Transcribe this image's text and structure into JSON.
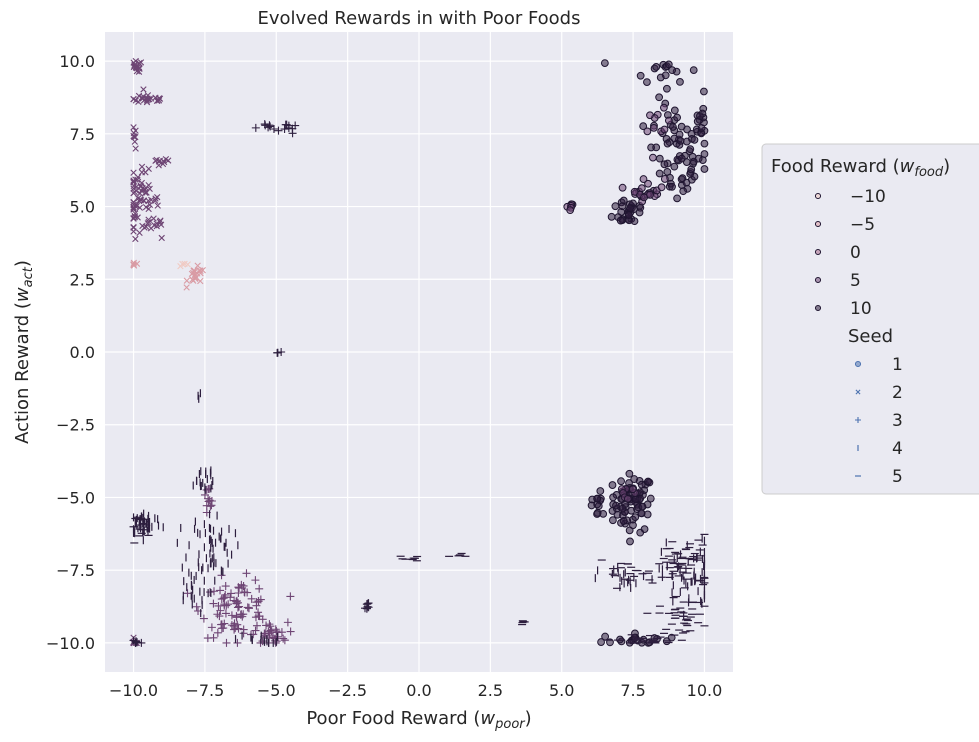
{
  "chart_data": {
    "type": "scatter",
    "title": "Evolved Rewards in with Poor Foods",
    "xlabel": "Poor Food Reward (",
    "xlabel_sym": "w",
    "xlabel_sub": "poor",
    "ylabel": "Action Reward (",
    "ylabel_sym": "w",
    "ylabel_sub": "act",
    "xlim": [
      -11,
      11
    ],
    "ylim": [
      -11,
      11
    ],
    "xticks": [
      -10,
      -7.5,
      -5,
      -2.5,
      0,
      2.5,
      5,
      7.5,
      10
    ],
    "xtick_labels": [
      "−10.0",
      "−7.5",
      "−5.0",
      "−2.5",
      "0.0",
      "2.5",
      "5.0",
      "7.5",
      "10.0"
    ],
    "yticks": [
      -10,
      -7.5,
      -5,
      -2.5,
      0,
      2.5,
      5,
      7.5,
      10
    ],
    "ytick_labels": [
      "−10.0",
      "−7.5",
      "−5.0",
      "−2.5",
      "0.0",
      "2.5",
      "5.0",
      "7.5",
      "10.0"
    ],
    "grid": true,
    "legend_position": "right",
    "legend": {
      "hue_title": "Food Reward (",
      "hue_sym": "w",
      "hue_sub": "food",
      "hue_entries": [
        {
          "label": "−10",
          "value": -10,
          "color": "#f0cac3"
        },
        {
          "label": "−5",
          "value": -5,
          "color": "#d99ba4"
        },
        {
          "label": "0",
          "value": 0,
          "color": "#a86a8c"
        },
        {
          "label": "5",
          "value": 5,
          "color": "#6e4574"
        },
        {
          "label": "10",
          "value": 10,
          "color": "#2d1e3e"
        }
      ],
      "style_title": "Seed",
      "style_entries": [
        {
          "label": "1",
          "marker": "circle"
        },
        {
          "label": "2",
          "marker": "x"
        },
        {
          "label": "3",
          "marker": "plus"
        },
        {
          "label": "4",
          "marker": "vline"
        },
        {
          "label": "5",
          "marker": "hline"
        }
      ],
      "legend_marker_color": "#4c72b0"
    },
    "clusters": [
      {
        "seed": 1,
        "food": 10,
        "x": 7.5,
        "y": -5.2,
        "sx": 0.35,
        "sy": 0.5,
        "n": 70
      },
      {
        "seed": 1,
        "food": 10,
        "x": 9.0,
        "y": 6.8,
        "sx": 0.5,
        "sy": 0.9,
        "n": 70
      },
      {
        "seed": 1,
        "food": 10,
        "x": 7.4,
        "y": 4.9,
        "sx": 0.3,
        "sy": 0.3,
        "n": 30
      },
      {
        "seed": 1,
        "food": 10,
        "x": 8.6,
        "y": 9.7,
        "sx": 0.6,
        "sy": 0.2,
        "n": 15
      },
      {
        "seed": 1,
        "food": 10,
        "x": 9.9,
        "y": 7.8,
        "sx": 0.1,
        "sy": 0.5,
        "n": 15
      },
      {
        "seed": 1,
        "food": 10,
        "x": 7.6,
        "y": -9.9,
        "sx": 0.6,
        "sy": 0.1,
        "n": 20
      },
      {
        "seed": 1,
        "food": 10,
        "x": 6.3,
        "y": -5.3,
        "sx": 0.3,
        "sy": 0.3,
        "n": 15
      },
      {
        "seed": 1,
        "food": 5,
        "x": 8.0,
        "y": 5.6,
        "sx": 0.3,
        "sy": 0.2,
        "n": 20
      },
      {
        "seed": 1,
        "food": 5,
        "x": 8.4,
        "y": 7.7,
        "sx": 0.2,
        "sy": 0.3,
        "n": 10
      },
      {
        "seed": 1,
        "food": 5,
        "x": 5.3,
        "y": 5.0,
        "sx": 0.1,
        "sy": 0.1,
        "n": 6
      },
      {
        "seed": 1,
        "food": 5,
        "x": 7.3,
        "y": -4.8,
        "sx": 0.2,
        "sy": 0.2,
        "n": 8
      },
      {
        "seed": 2,
        "food": 5,
        "x": -9.8,
        "y": 5.2,
        "sx": 0.35,
        "sy": 0.5,
        "n": 70
      },
      {
        "seed": 2,
        "food": 5,
        "x": -9.5,
        "y": 8.7,
        "sx": 0.35,
        "sy": 0.1,
        "n": 25
      },
      {
        "seed": 2,
        "food": 5,
        "x": -9.9,
        "y": 9.8,
        "sx": 0.1,
        "sy": 0.1,
        "n": 15
      },
      {
        "seed": 2,
        "food": 5,
        "x": -9.1,
        "y": 6.5,
        "sx": 0.2,
        "sy": 0.1,
        "n": 10
      },
      {
        "seed": 2,
        "food": 5,
        "x": -9.2,
        "y": 4.4,
        "sx": 0.2,
        "sy": 0.1,
        "n": 10
      },
      {
        "seed": 2,
        "food": 5,
        "x": -10.0,
        "y": 7.3,
        "sx": 0.05,
        "sy": 0.2,
        "n": 8
      },
      {
        "seed": 2,
        "food": 5,
        "x": -10.0,
        "y": -10.0,
        "sx": 0.1,
        "sy": 0.1,
        "n": 10
      },
      {
        "seed": 2,
        "food": -5,
        "x": -7.8,
        "y": 2.6,
        "sx": 0.15,
        "sy": 0.15,
        "n": 20
      },
      {
        "seed": 2,
        "food": -5,
        "x": -10.0,
        "y": 3.0,
        "sx": 0.05,
        "sy": 0.05,
        "n": 6
      },
      {
        "seed": 2,
        "food": -10,
        "x": -8.2,
        "y": 3.0,
        "sx": 0.1,
        "sy": 0.05,
        "n": 4
      },
      {
        "seed": 3,
        "food": 5,
        "x": -6.4,
        "y": -8.8,
        "sx": 0.6,
        "sy": 0.5,
        "n": 90
      },
      {
        "seed": 3,
        "food": 5,
        "x": -5.2,
        "y": -9.7,
        "sx": 0.3,
        "sy": 0.2,
        "n": 30
      },
      {
        "seed": 3,
        "food": 5,
        "x": -7.4,
        "y": -5.2,
        "sx": 0.1,
        "sy": 0.3,
        "n": 12
      },
      {
        "seed": 3,
        "food": 10,
        "x": -5.3,
        "y": 7.7,
        "sx": 0.2,
        "sy": 0.1,
        "n": 8
      },
      {
        "seed": 3,
        "food": 10,
        "x": -4.5,
        "y": 7.7,
        "sx": 0.1,
        "sy": 0.1,
        "n": 8
      },
      {
        "seed": 3,
        "food": 10,
        "x": -1.8,
        "y": -8.8,
        "sx": 0.1,
        "sy": 0.15,
        "n": 8
      },
      {
        "seed": 3,
        "food": 10,
        "x": -9.9,
        "y": -10.0,
        "sx": 0.1,
        "sy": 0.1,
        "n": 8
      },
      {
        "seed": 3,
        "food": 10,
        "x": -5.0,
        "y": 0.0,
        "sx": 0.1,
        "sy": 0.05,
        "n": 3
      },
      {
        "seed": 4,
        "food": 10,
        "x": -9.6,
        "y": -5.9,
        "sx": 0.3,
        "sy": 0.2,
        "n": 50
      },
      {
        "seed": 4,
        "food": 10,
        "x": -7.3,
        "y": -6.7,
        "sx": 0.4,
        "sy": 0.6,
        "n": 60
      },
      {
        "seed": 4,
        "food": 10,
        "x": -7.6,
        "y": -4.4,
        "sx": 0.3,
        "sy": 0.3,
        "n": 20
      },
      {
        "seed": 4,
        "food": 10,
        "x": -8.0,
        "y": -8.4,
        "sx": 0.3,
        "sy": 0.3,
        "n": 20
      },
      {
        "seed": 4,
        "food": 10,
        "x": -5.7,
        "y": -9.9,
        "sx": 0.4,
        "sy": 0.1,
        "n": 15
      },
      {
        "seed": 4,
        "food": 10,
        "x": 9.5,
        "y": -7.7,
        "sx": 0.5,
        "sy": 0.6,
        "n": 70
      },
      {
        "seed": 4,
        "food": 10,
        "x": 7.3,
        "y": -7.8,
        "sx": 0.5,
        "sy": 0.2,
        "n": 20
      },
      {
        "seed": 4,
        "food": 10,
        "x": -7.7,
        "y": -1.6,
        "sx": 0.05,
        "sy": 0.1,
        "n": 3
      },
      {
        "seed": 5,
        "food": 10,
        "x": 9.3,
        "y": -7.3,
        "sx": 0.5,
        "sy": 0.5,
        "n": 60
      },
      {
        "seed": 5,
        "food": 10,
        "x": 9.2,
        "y": -9.1,
        "sx": 0.4,
        "sy": 0.3,
        "n": 40
      },
      {
        "seed": 5,
        "food": 10,
        "x": 8.0,
        "y": -9.9,
        "sx": 0.8,
        "sy": 0.1,
        "n": 25
      },
      {
        "seed": 5,
        "food": 10,
        "x": 7.2,
        "y": -7.6,
        "sx": 0.5,
        "sy": 0.2,
        "n": 20
      },
      {
        "seed": 5,
        "food": 10,
        "x": -0.3,
        "y": -7.1,
        "sx": 0.2,
        "sy": 0.05,
        "n": 8
      },
      {
        "seed": 5,
        "food": 10,
        "x": 1.5,
        "y": -7.0,
        "sx": 0.2,
        "sy": 0.05,
        "n": 6
      },
      {
        "seed": 5,
        "food": 10,
        "x": 3.7,
        "y": -9.3,
        "sx": 0.1,
        "sy": 0.05,
        "n": 5
      },
      {
        "seed": 5,
        "food": 10,
        "x": -9.7,
        "y": -6.0,
        "sx": 0.2,
        "sy": 0.2,
        "n": 15
      }
    ]
  }
}
